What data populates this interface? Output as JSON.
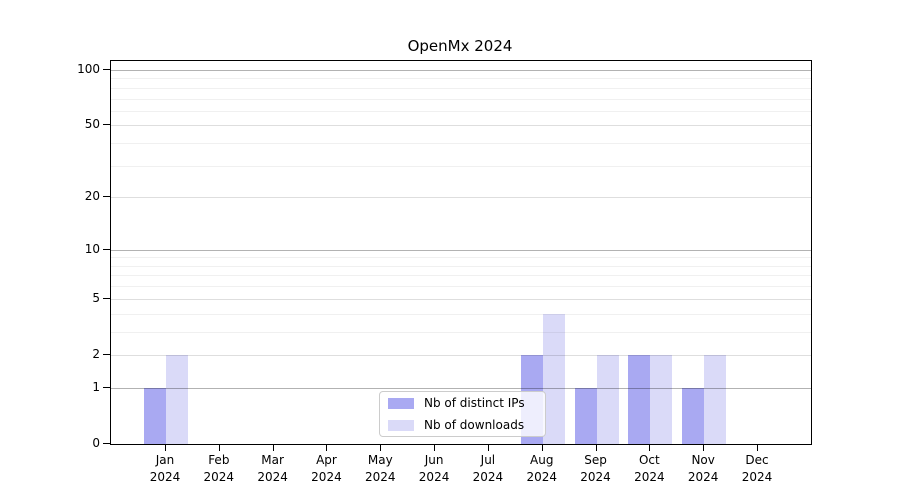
{
  "chart_data": {
    "type": "bar",
    "title": "OpenMx 2024",
    "categories": [
      "Jan 2024",
      "Feb 2024",
      "Mar 2024",
      "Apr 2024",
      "May 2024",
      "Jun 2024",
      "Jul 2024",
      "Aug 2024",
      "Sep 2024",
      "Oct 2024",
      "Nov 2024",
      "Dec 2024"
    ],
    "series": [
      {
        "name": "Nb of distinct IPs",
        "color": "#a9a9f2",
        "values": [
          1,
          0,
          0,
          0,
          0,
          0,
          0,
          2,
          1,
          2,
          1,
          0
        ]
      },
      {
        "name": "Nb of downloads",
        "color": "#dadaf8",
        "values": [
          2,
          0,
          0,
          0,
          0,
          0,
          0,
          4,
          2,
          2,
          2,
          0
        ]
      }
    ],
    "yscale": "log1p",
    "yticks": [
      0,
      1,
      2,
      5,
      10,
      20,
      50,
      100
    ],
    "minor_yticks": [
      3,
      4,
      6,
      7,
      8,
      9,
      30,
      40,
      60,
      70,
      80,
      90
    ],
    "decade_yticks": [
      1,
      10,
      100
    ],
    "ylim": [
      0,
      110
    ],
    "grid": true,
    "legend_position": "lower center"
  }
}
